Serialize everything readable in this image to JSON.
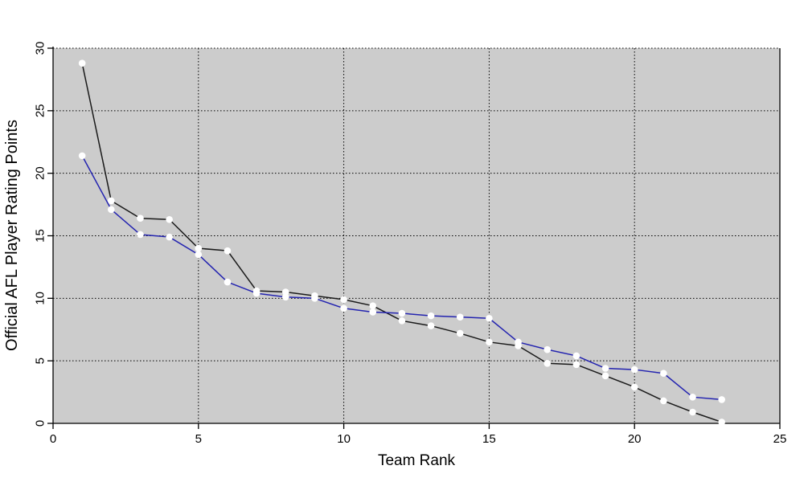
{
  "chart_data": {
    "type": "line",
    "title": "",
    "xlabel": "Team Rank",
    "ylabel": "Official AFL Player Rating Points",
    "x": [
      1,
      2,
      3,
      4,
      5,
      6,
      7,
      8,
      9,
      10,
      11,
      12,
      13,
      14,
      15,
      16,
      17,
      18,
      19,
      20,
      21,
      22,
      23
    ],
    "series": [
      {
        "name": "black-series",
        "color": "#1a1a1a",
        "values": [
          28.8,
          17.8,
          16.4,
          16.3,
          14.0,
          13.8,
          10.6,
          10.5,
          10.2,
          9.9,
          9.4,
          8.2,
          7.8,
          7.2,
          6.5,
          6.2,
          4.8,
          4.7,
          3.8,
          2.9,
          1.8,
          0.9,
          0.1
        ]
      },
      {
        "name": "blue-series",
        "color": "#2424b0",
        "values": [
          21.4,
          17.1,
          15.1,
          14.9,
          13.5,
          11.3,
          10.4,
          10.1,
          10.0,
          9.2,
          8.9,
          8.8,
          8.6,
          8.5,
          8.4,
          6.5,
          5.9,
          5.4,
          4.4,
          4.3,
          4.0,
          2.1,
          1.9
        ]
      }
    ],
    "xlim": [
      0,
      25
    ],
    "ylim": [
      0,
      30
    ],
    "xticks": [
      0,
      5,
      10,
      15,
      20,
      25
    ],
    "yticks": [
      0,
      5,
      10,
      15,
      20,
      25,
      30
    ],
    "xtick_labels": [
      "0",
      "5",
      "10",
      "15",
      "20",
      "25"
    ],
    "ytick_labels": [
      "0",
      "5",
      "10",
      "15",
      "20",
      "25",
      "30"
    ],
    "grid": "dotted",
    "legend_position": "none",
    "plot_bg_color": "#cccccc",
    "outer_bg_color": "#ffffff",
    "marker": {
      "shape": "circle",
      "fill": "#ffffff",
      "radius": 4.3
    }
  }
}
